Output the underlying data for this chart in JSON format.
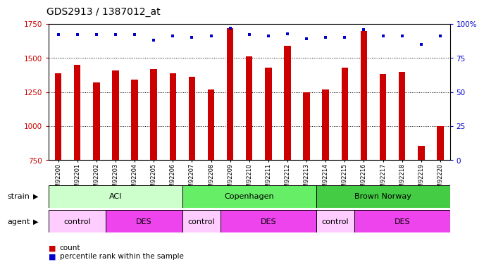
{
  "title": "GDS2913 / 1387012_at",
  "samples": [
    "GSM92200",
    "GSM92201",
    "GSM92202",
    "GSM92203",
    "GSM92204",
    "GSM92205",
    "GSM92206",
    "GSM92207",
    "GSM92208",
    "GSM92209",
    "GSM92210",
    "GSM92211",
    "GSM92212",
    "GSM92213",
    "GSM92214",
    "GSM92215",
    "GSM92216",
    "GSM92217",
    "GSM92218",
    "GSM92219",
    "GSM92220"
  ],
  "counts": [
    1390,
    1450,
    1320,
    1410,
    1340,
    1420,
    1390,
    1360,
    1270,
    1720,
    1510,
    1430,
    1590,
    1250,
    1270,
    1430,
    1700,
    1380,
    1400,
    855,
    1000
  ],
  "percentiles": [
    92,
    92,
    92,
    92,
    92,
    88,
    91,
    90,
    91,
    97,
    92,
    91,
    93,
    89,
    90,
    90,
    96,
    91,
    91,
    85,
    91
  ],
  "ylim_left": [
    750,
    1750
  ],
  "ylim_right": [
    0,
    100
  ],
  "yticks_left": [
    750,
    1000,
    1250,
    1500,
    1750
  ],
  "yticks_right": [
    0,
    25,
    50,
    75,
    100
  ],
  "bar_color": "#cc0000",
  "dot_color": "#0000cc",
  "bar_bottom": 750,
  "strain_groups": [
    {
      "label": "ACI",
      "start": 0,
      "end": 6,
      "color": "#ccffcc"
    },
    {
      "label": "Copenhagen",
      "start": 7,
      "end": 13,
      "color": "#66ee66"
    },
    {
      "label": "Brown Norway",
      "start": 14,
      "end": 20,
      "color": "#44cc44"
    }
  ],
  "agent_groups": [
    {
      "label": "control",
      "start": 0,
      "end": 2,
      "color": "#ffccff"
    },
    {
      "label": "DES",
      "start": 3,
      "end": 6,
      "color": "#ee44ee"
    },
    {
      "label": "control",
      "start": 7,
      "end": 8,
      "color": "#ffccff"
    },
    {
      "label": "DES",
      "start": 9,
      "end": 13,
      "color": "#ee44ee"
    },
    {
      "label": "control",
      "start": 14,
      "end": 15,
      "color": "#ffccff"
    },
    {
      "label": "DES",
      "start": 16,
      "end": 20,
      "color": "#ee44ee"
    }
  ],
  "bg_color": "#ffffff",
  "tick_label_color_left": "#cc0000",
  "tick_label_color_right": "#0000cc",
  "legend_items": [
    "count",
    "percentile rank within the sample"
  ]
}
